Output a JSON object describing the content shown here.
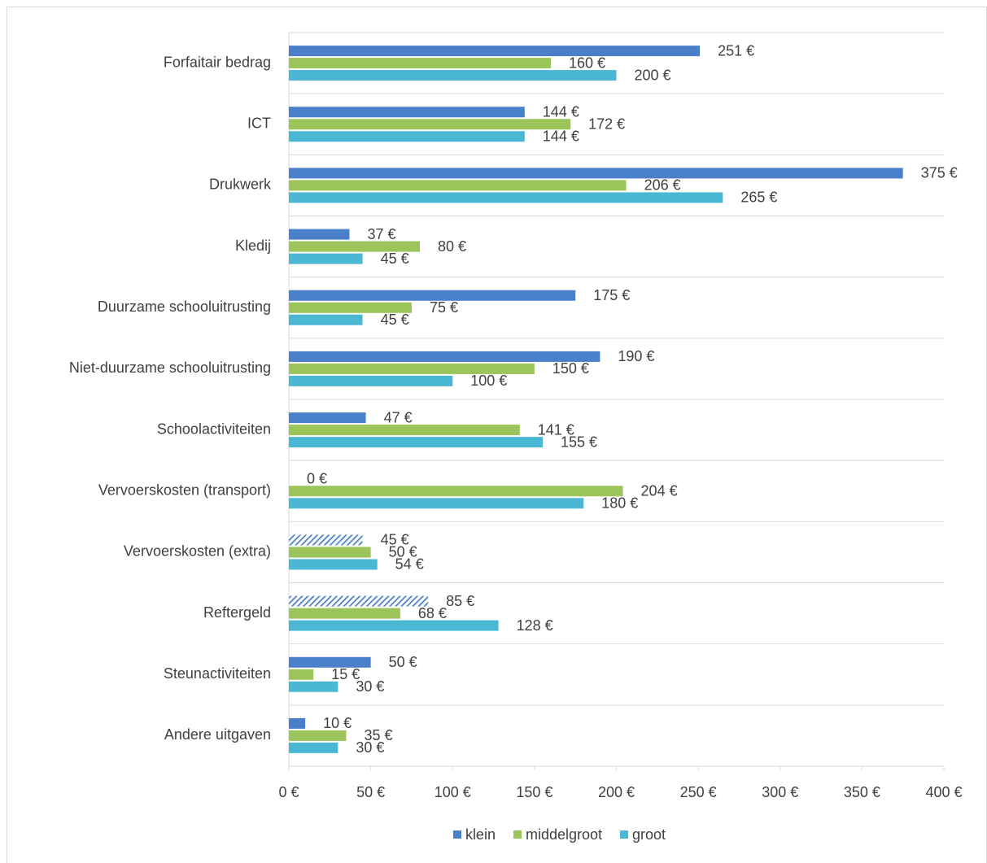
{
  "chart_data": {
    "type": "bar",
    "orientation": "horizontal",
    "categories": [
      "Forfaitair bedrag",
      "ICT",
      "Drukwerk",
      "Kledij",
      "Duurzame schooluitrusting",
      "Niet-duurzame schooluitrusting",
      "Schoolactiviteiten",
      "Vervoerskosten (transport)",
      "Vervoerskosten (extra)",
      "Reftergeld",
      "Steunactiviteiten",
      "Andere uitgaven"
    ],
    "series": [
      {
        "name": "klein",
        "color": "#4a7fc9",
        "values": [
          251,
          144,
          375,
          37,
          175,
          190,
          47,
          0,
          45,
          85,
          50,
          10
        ],
        "value_labels": [
          "251 €",
          "144 €",
          "375 €",
          "37 €",
          "175 €",
          "190 €",
          "47 €",
          "0 €",
          "45 €",
          "85 €",
          "50 €",
          "10 €"
        ],
        "hatched": [
          false,
          false,
          false,
          false,
          false,
          false,
          false,
          false,
          true,
          true,
          false,
          false
        ]
      },
      {
        "name": "middelgroot",
        "color": "#9bc45b",
        "values": [
          160,
          172,
          206,
          80,
          75,
          150,
          141,
          204,
          50,
          68,
          15,
          35
        ],
        "value_labels": [
          "160 €",
          "172 €",
          "206 €",
          "80 €",
          "75 €",
          "150 €",
          "141 €",
          "204 €",
          "50 €",
          "68 €",
          "15 €",
          "35 €"
        ]
      },
      {
        "name": "groot",
        "color": "#4bb8d3",
        "values": [
          200,
          144,
          265,
          45,
          45,
          100,
          155,
          180,
          54,
          128,
          30,
          30
        ],
        "value_labels": [
          "200 €",
          "144 €",
          "265 €",
          "45 €",
          "45 €",
          "100 €",
          "155 €",
          "180 €",
          "54 €",
          "128 €",
          "30 €",
          "30 €"
        ]
      }
    ],
    "xlim": [
      0,
      400
    ],
    "xticks": [
      {
        "value": 0,
        "label": "0 €"
      },
      {
        "value": 50,
        "label": "50 €"
      },
      {
        "value": 100,
        "label": "100 €"
      },
      {
        "value": 150,
        "label": "150 €"
      },
      {
        "value": 200,
        "label": "200 €"
      },
      {
        "value": 250,
        "label": "250 €"
      },
      {
        "value": 300,
        "label": "300 €"
      },
      {
        "value": 350,
        "label": "350 €"
      },
      {
        "value": 400,
        "label": "400 €"
      }
    ],
    "grid": true,
    "legend": "bottom"
  }
}
